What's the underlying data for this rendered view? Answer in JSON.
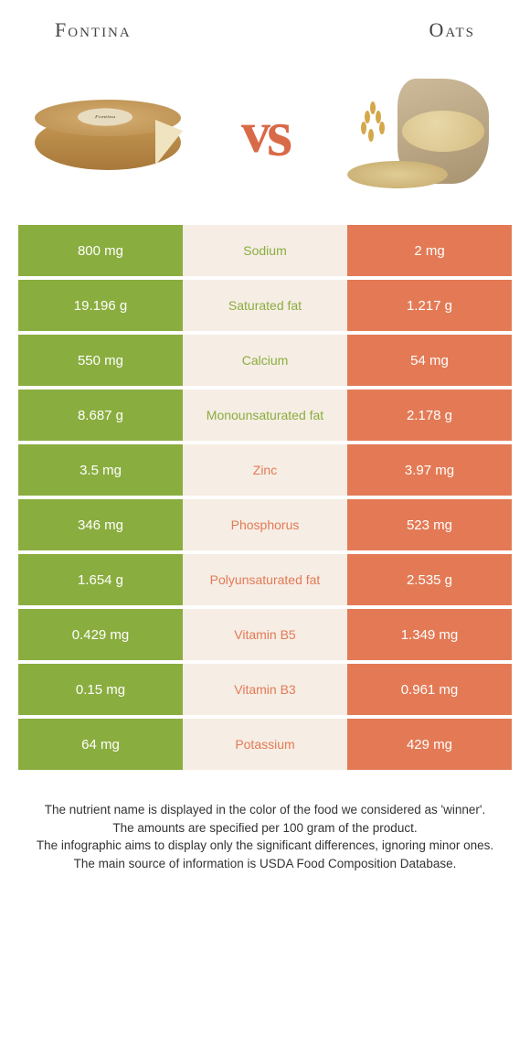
{
  "left_food": {
    "name": "Fontina",
    "color": "#8aad3f"
  },
  "right_food": {
    "name": "Oats",
    "color": "#e37a55"
  },
  "vs_text": "vs",
  "mid_background": "#f6ede4",
  "rows": [
    {
      "nutrient": "Sodium",
      "left": "800 mg",
      "right": "2 mg",
      "winner": "left"
    },
    {
      "nutrient": "Saturated fat",
      "left": "19.196 g",
      "right": "1.217 g",
      "winner": "left"
    },
    {
      "nutrient": "Calcium",
      "left": "550 mg",
      "right": "54 mg",
      "winner": "left"
    },
    {
      "nutrient": "Monounsaturated fat",
      "left": "8.687 g",
      "right": "2.178 g",
      "winner": "left"
    },
    {
      "nutrient": "Zinc",
      "left": "3.5 mg",
      "right": "3.97 mg",
      "winner": "right"
    },
    {
      "nutrient": "Phosphorus",
      "left": "346 mg",
      "right": "523 mg",
      "winner": "right"
    },
    {
      "nutrient": "Polyunsaturated fat",
      "left": "1.654 g",
      "right": "2.535 g",
      "winner": "right"
    },
    {
      "nutrient": "Vitamin B5",
      "left": "0.429 mg",
      "right": "1.349 mg",
      "winner": "right"
    },
    {
      "nutrient": "Vitamin B3",
      "left": "0.15 mg",
      "right": "0.961 mg",
      "winner": "right"
    },
    {
      "nutrient": "Potassium",
      "left": "64 mg",
      "right": "429 mg",
      "winner": "right"
    }
  ],
  "footer_lines": [
    "The nutrient name is displayed in the color of the food we considered as 'winner'.",
    "The amounts are specified per 100 gram of the product.",
    "The infographic aims to display only the significant differences, ignoring minor ones.",
    "The main source of information is USDA Food Composition Database."
  ]
}
